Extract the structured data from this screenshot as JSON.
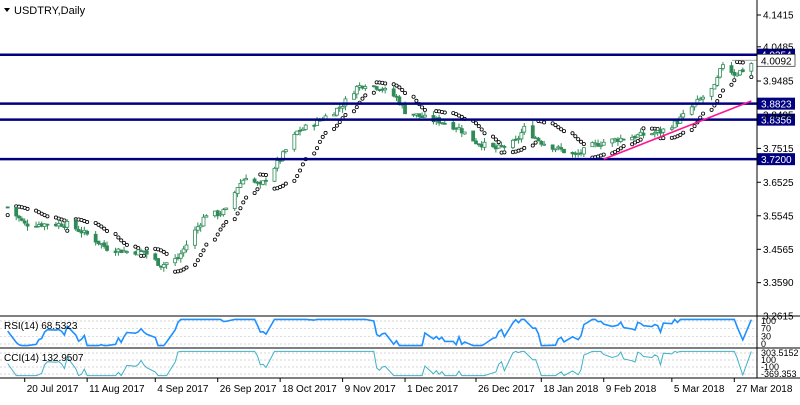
{
  "chart_data": {
    "type": "candlestick",
    "title": "USDTRY,Daily",
    "price_axis": {
      "ticks": [
        "4.1415",
        "4.0485",
        "3.9485",
        "3.8495",
        "3.7515",
        "3.6525",
        "3.5545",
        "3.4565",
        "3.3590",
        "3.2615"
      ],
      "range": [
        3.2615,
        4.1415
      ]
    },
    "levels": [
      {
        "label": "4.0254",
        "value": 4.0254,
        "color": "#000080"
      },
      {
        "label": "3.8823",
        "value": 3.8823,
        "color": "#000080"
      },
      {
        "label": "3.8356",
        "value": 3.8356,
        "color": "#000080"
      },
      {
        "label": "3.7200",
        "value": 3.72,
        "color": "#000080"
      }
    ],
    "current_price": {
      "label": "4.0092",
      "value": 4.0092
    },
    "trendline": {
      "color": "#ff1493",
      "from": {
        "date": "2018-02-09",
        "price": 3.72
      },
      "to": {
        "date": "2018-04-02",
        "price": 3.89
      }
    },
    "date_axis": {
      "labels": [
        "20 Jul 2017",
        "11 Aug 2017",
        "4 Sep 2017",
        "26 Sep 2017",
        "18 Oct 2017",
        "9 Nov 2017",
        "1 Dec 2017",
        "26 Dec 2017",
        "18 Jan 2018",
        "9 Feb 2018",
        "5 Mar 2018",
        "27 Mar 2018"
      ]
    },
    "close_anchors": [
      [
        "2017-07-14",
        3.58
      ],
      [
        "2017-07-20",
        3.53
      ],
      [
        "2017-07-28",
        3.53
      ],
      [
        "2017-08-04",
        3.53
      ],
      [
        "2017-08-11",
        3.5
      ],
      [
        "2017-08-18",
        3.46
      ],
      [
        "2017-08-25",
        3.45
      ],
      [
        "2017-08-31",
        3.45
      ],
      [
        "2017-09-06",
        3.41
      ],
      [
        "2017-09-12",
        3.43
      ],
      [
        "2017-09-18",
        3.51
      ],
      [
        "2017-09-22",
        3.56
      ],
      [
        "2017-09-26",
        3.56
      ],
      [
        "2017-09-29",
        3.57
      ],
      [
        "2017-10-03",
        3.64
      ],
      [
        "2017-10-06",
        3.67
      ],
      [
        "2017-10-11",
        3.64
      ],
      [
        "2017-10-18",
        3.72
      ],
      [
        "2017-10-24",
        3.8
      ],
      [
        "2017-10-31",
        3.83
      ],
      [
        "2017-11-06",
        3.86
      ],
      [
        "2017-11-09",
        3.88
      ],
      [
        "2017-11-14",
        3.93
      ],
      [
        "2017-11-17",
        3.94
      ],
      [
        "2017-11-22",
        3.93
      ],
      [
        "2017-11-28",
        3.9
      ],
      [
        "2017-12-01",
        3.86
      ],
      [
        "2017-12-08",
        3.84
      ],
      [
        "2017-12-14",
        3.83
      ],
      [
        "2017-12-20",
        3.81
      ],
      [
        "2017-12-26",
        3.77
      ],
      [
        "2018-01-02",
        3.75
      ],
      [
        "2018-01-09",
        3.77
      ],
      [
        "2018-01-12",
        3.81
      ],
      [
        "2018-01-18",
        3.77
      ],
      [
        "2018-01-24",
        3.75
      ],
      [
        "2018-01-30",
        3.73
      ],
      [
        "2018-02-05",
        3.76
      ],
      [
        "2018-02-09",
        3.77
      ],
      [
        "2018-02-15",
        3.78
      ],
      [
        "2018-02-22",
        3.79
      ],
      [
        "2018-03-01",
        3.8
      ],
      [
        "2018-03-07",
        3.83
      ],
      [
        "2018-03-13",
        3.88
      ],
      [
        "2018-03-20",
        3.93
      ],
      [
        "2018-03-23",
        4.0
      ],
      [
        "2018-03-27",
        3.97
      ],
      [
        "2018-03-30",
        3.98
      ],
      [
        "2018-04-02",
        4.0
      ]
    ],
    "parabolic_sar": {
      "style": "hollow-dots"
    },
    "indicators": [
      {
        "name": "RSI(14)",
        "value": "68.5323",
        "axis_labels": [
          "100",
          "70",
          "30",
          "0"
        ]
      },
      {
        "name": "CCI(14)",
        "value": "132.9507",
        "axis_labels": [
          "303.5152",
          "100",
          "-100",
          "-369.353"
        ]
      }
    ],
    "grid": "dashed",
    "colors": {
      "bull_candle": "#ffffff",
      "bear_candle": "#2e8b57",
      "axis_text": "#000000",
      "label_bg": "#000080",
      "label_text": "#ffffff",
      "rsi_line": "#1e90ff",
      "cci_line": "#40b0c8",
      "current_price_bg": "#ffffff"
    }
  }
}
